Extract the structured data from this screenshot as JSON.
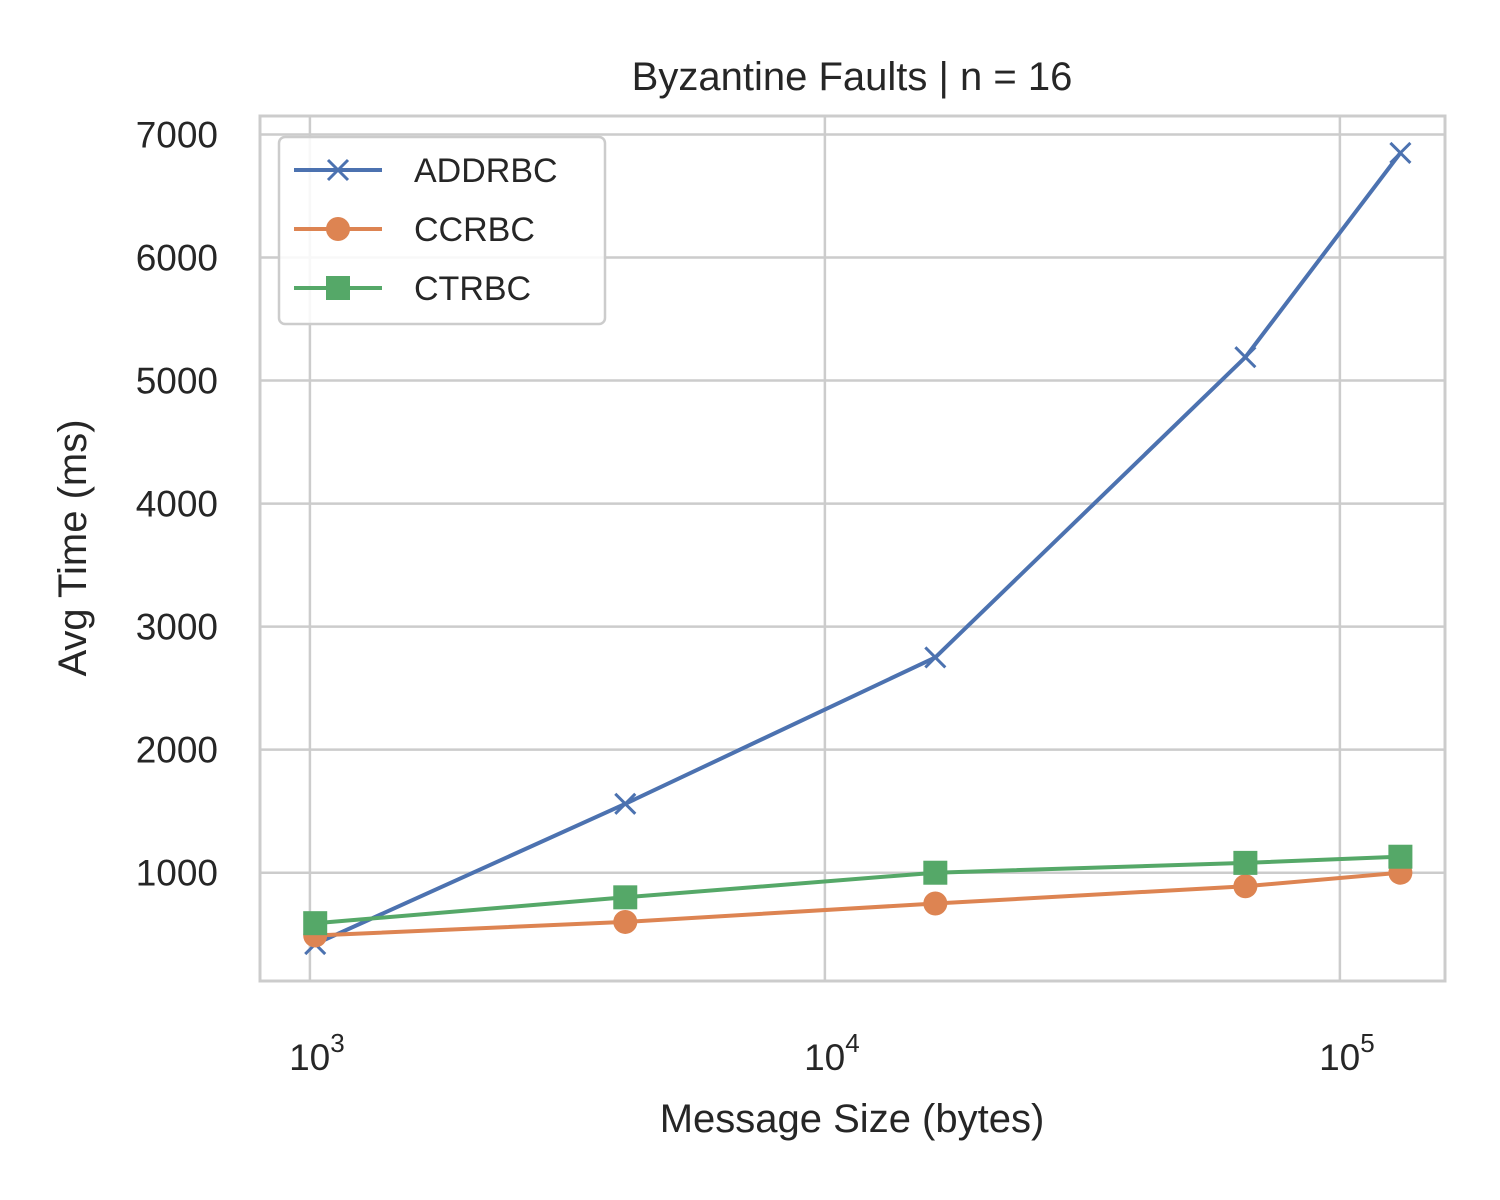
{
  "chart_data": {
    "type": "line",
    "title": "Byzantine Faults | n = 16",
    "xlabel": "Message Size (bytes)",
    "ylabel": "Avg Time (ms)",
    "x_scale": "log",
    "xlim": [
      800,
      160000
    ],
    "ylim": [
      120,
      7150
    ],
    "x_ticks": [
      1000,
      10000,
      100000
    ],
    "x_tick_labels": [
      {
        "base": "10",
        "exp": "3"
      },
      {
        "base": "10",
        "exp": "4"
      },
      {
        "base": "10",
        "exp": "5"
      }
    ],
    "y_ticks": [
      1000,
      2000,
      3000,
      4000,
      5000,
      6000,
      7000
    ],
    "y_tick_labels": [
      "1000",
      "2000",
      "3000",
      "4000",
      "5000",
      "6000",
      "7000"
    ],
    "grid": true,
    "legend_position": "top-left",
    "x": [
      1024,
      4096,
      16384,
      65536,
      131072
    ],
    "series": [
      {
        "name": "ADDRBC",
        "marker": "x",
        "color": "#4c72b0",
        "values": [
          420,
          1560,
          2750,
          5190,
          6850
        ]
      },
      {
        "name": "CCRBC",
        "marker": "circle",
        "color": "#dd8452",
        "values": [
          490,
          600,
          750,
          890,
          1000
        ]
      },
      {
        "name": "CTRBC",
        "marker": "square",
        "color": "#55a868",
        "values": [
          590,
          800,
          1000,
          1080,
          1130
        ]
      }
    ]
  }
}
